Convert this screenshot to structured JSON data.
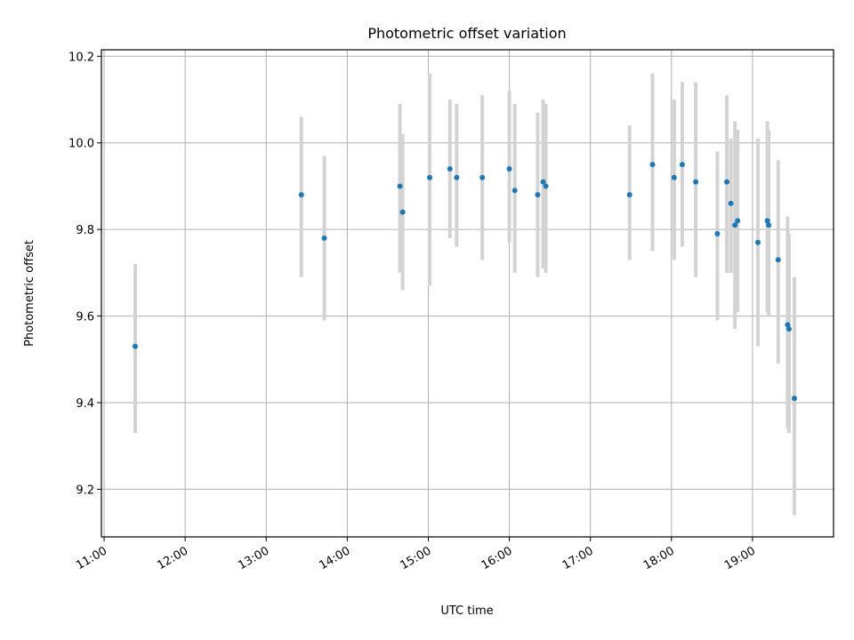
{
  "chart_data": {
    "type": "scatter",
    "title": "Photometric offset variation",
    "xlabel": "UTC time",
    "ylabel": "Photometric offset",
    "xlim": [
      "10:58",
      "20:00"
    ],
    "ylim": [
      9.09,
      10.215
    ],
    "grid": true,
    "x_ticks": [
      "11:00",
      "12:00",
      "13:00",
      "14:00",
      "15:00",
      "16:00",
      "17:00",
      "18:00",
      "19:00"
    ],
    "y_ticks": [
      "9.2",
      "9.4",
      "9.6",
      "9.8",
      "10.0",
      "10.2"
    ],
    "colors": {
      "marker": "#1f77b4",
      "errorbar": "#d3d3d3",
      "grid": "#b0b0b0"
    },
    "points": [
      {
        "x": "11:23",
        "y": 9.53,
        "ylow": 9.33,
        "yhigh": 9.72
      },
      {
        "x": "13:26",
        "y": 9.88,
        "ylow": 9.69,
        "yhigh": 10.06
      },
      {
        "x": "13:43",
        "y": 9.78,
        "ylow": 9.59,
        "yhigh": 9.97
      },
      {
        "x": "14:39",
        "y": 9.9,
        "ylow": 9.7,
        "yhigh": 10.09
      },
      {
        "x": "14:41",
        "y": 9.84,
        "ylow": 9.66,
        "yhigh": 10.02
      },
      {
        "x": "15:01",
        "y": 9.92,
        "ylow": 9.67,
        "yhigh": 10.16
      },
      {
        "x": "15:16",
        "y": 9.94,
        "ylow": 9.78,
        "yhigh": 10.1
      },
      {
        "x": "15:21",
        "y": 9.92,
        "ylow": 9.76,
        "yhigh": 10.09
      },
      {
        "x": "15:40",
        "y": 9.92,
        "ylow": 9.73,
        "yhigh": 10.11
      },
      {
        "x": "16:00",
        "y": 9.94,
        "ylow": 9.77,
        "yhigh": 10.12
      },
      {
        "x": "16:04",
        "y": 9.89,
        "ylow": 9.7,
        "yhigh": 10.09
      },
      {
        "x": "16:21",
        "y": 9.88,
        "ylow": 9.69,
        "yhigh": 10.07
      },
      {
        "x": "16:25",
        "y": 9.91,
        "ylow": 9.71,
        "yhigh": 10.1
      },
      {
        "x": "16:27",
        "y": 9.9,
        "ylow": 9.7,
        "yhigh": 10.09
      },
      {
        "x": "17:29",
        "y": 9.88,
        "ylow": 9.73,
        "yhigh": 10.04
      },
      {
        "x": "17:46",
        "y": 9.95,
        "ylow": 9.75,
        "yhigh": 10.16
      },
      {
        "x": "18:02",
        "y": 9.92,
        "ylow": 9.73,
        "yhigh": 10.1
      },
      {
        "x": "18:08",
        "y": 9.95,
        "ylow": 9.76,
        "yhigh": 10.14
      },
      {
        "x": "18:18",
        "y": 9.91,
        "ylow": 9.69,
        "yhigh": 10.14
      },
      {
        "x": "18:34",
        "y": 9.79,
        "ylow": 9.59,
        "yhigh": 9.98
      },
      {
        "x": "18:41",
        "y": 9.91,
        "ylow": 9.7,
        "yhigh": 10.11
      },
      {
        "x": "18:44",
        "y": 9.86,
        "ylow": 9.7,
        "yhigh": 10.01
      },
      {
        "x": "18:47",
        "y": 9.81,
        "ylow": 9.57,
        "yhigh": 10.05
      },
      {
        "x": "18:49",
        "y": 9.82,
        "ylow": 9.61,
        "yhigh": 10.03
      },
      {
        "x": "19:04",
        "y": 9.77,
        "ylow": 9.53,
        "yhigh": 10.01
      },
      {
        "x": "19:11",
        "y": 9.82,
        "ylow": 9.61,
        "yhigh": 10.05
      },
      {
        "x": "19:12",
        "y": 9.81,
        "ylow": 9.6,
        "yhigh": 10.03
      },
      {
        "x": "19:19",
        "y": 9.73,
        "ylow": 9.49,
        "yhigh": 9.96
      },
      {
        "x": "19:26",
        "y": 9.58,
        "ylow": 9.34,
        "yhigh": 9.83
      },
      {
        "x": "19:27",
        "y": 9.57,
        "ylow": 9.33,
        "yhigh": 9.79
      },
      {
        "x": "19:31",
        "y": 9.41,
        "ylow": 9.14,
        "yhigh": 9.69
      }
    ]
  }
}
